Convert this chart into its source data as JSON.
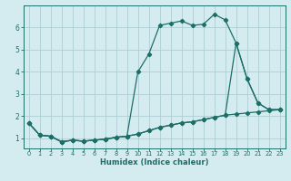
{
  "xlabel": "Humidex (Indice chaleur)",
  "bg_color": "#d4ecf0",
  "grid_color": "#aecdd4",
  "line_color": "#1e6e68",
  "xlim": [
    -0.5,
    23.5
  ],
  "ylim": [
    0.55,
    7.0
  ],
  "xticks": [
    0,
    1,
    2,
    3,
    4,
    5,
    6,
    7,
    8,
    9,
    10,
    11,
    12,
    13,
    14,
    15,
    16,
    17,
    18,
    19,
    20,
    21,
    22,
    23
  ],
  "yticks": [
    1,
    2,
    3,
    4,
    5,
    6
  ],
  "line1_x": [
    0,
    1,
    2,
    3,
    4,
    5,
    6,
    7,
    8,
    9,
    10,
    11,
    12,
    13,
    14,
    15,
    16,
    17,
    18,
    19,
    20,
    21,
    22,
    23
  ],
  "line1_y": [
    1.7,
    1.15,
    1.1,
    0.85,
    0.92,
    0.88,
    0.92,
    0.97,
    1.05,
    1.1,
    1.2,
    1.35,
    1.5,
    1.6,
    1.7,
    1.75,
    1.85,
    1.95,
    2.05,
    2.1,
    2.15,
    2.2,
    2.25,
    2.3
  ],
  "line2_x": [
    0,
    1,
    2,
    3,
    4,
    5,
    6,
    7,
    8,
    9,
    10,
    11,
    12,
    13,
    14,
    15,
    16,
    17,
    18,
    19,
    20,
    21,
    22,
    23
  ],
  "line2_y": [
    1.7,
    1.15,
    1.1,
    0.85,
    0.92,
    0.88,
    0.92,
    0.97,
    1.05,
    1.1,
    4.0,
    4.8,
    6.1,
    6.2,
    6.3,
    6.1,
    6.15,
    6.6,
    6.35,
    5.3,
    3.7,
    2.6,
    2.3,
    2.3
  ],
  "line3_x": [
    0,
    1,
    2,
    3,
    4,
    5,
    6,
    7,
    8,
    9,
    10,
    11,
    12,
    13,
    14,
    15,
    16,
    17,
    18,
    19,
    20,
    21,
    22,
    23
  ],
  "line3_y": [
    1.7,
    1.15,
    1.1,
    0.85,
    0.92,
    0.88,
    0.92,
    0.97,
    1.05,
    1.1,
    1.2,
    1.35,
    1.5,
    1.6,
    1.7,
    1.75,
    1.85,
    1.95,
    2.05,
    5.3,
    3.7,
    2.6,
    2.3,
    2.3
  ]
}
